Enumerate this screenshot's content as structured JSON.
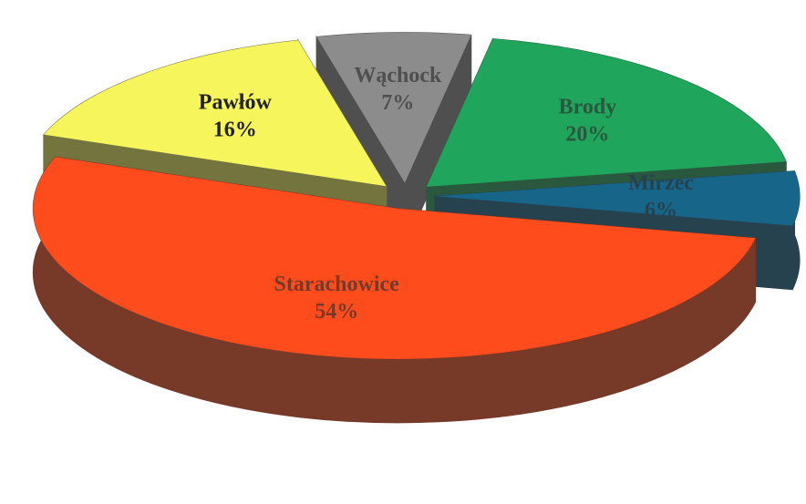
{
  "chart_data": {
    "type": "pie",
    "categories": [
      "Wąchock",
      "Brody",
      "Mirzec",
      "Starachowice",
      "Pawłów"
    ],
    "values": [
      7,
      20,
      6,
      54,
      16
    ],
    "value_labels": [
      "7%",
      "20%",
      "6%",
      "54%",
      "16%"
    ],
    "colors": [
      "#8c8c8c",
      "#1fa55c",
      "#17668a",
      "#ff4c1c",
      "#f6f65c"
    ]
  }
}
